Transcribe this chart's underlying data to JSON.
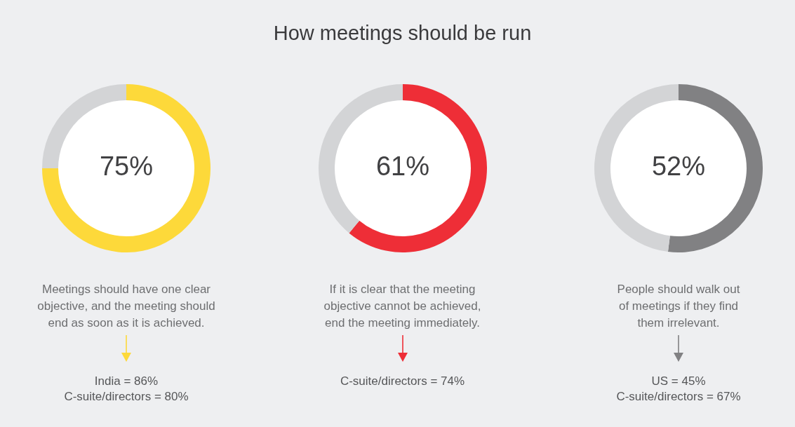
{
  "chart_data": [
    {
      "type": "donut",
      "categories": [
        null,
        null
      ],
      "values": [
        75,
        25
      ],
      "colors": [
        "#fdd93a",
        "#d3d4d6"
      ],
      "value_labels": [
        "75%",
        null
      ],
      "annotations": [
        "Meetings should have one clear objective, and the meeting should end as soon as it is achieved.",
        "India = 86%",
        "C-suite/directors = 80%"
      ]
    },
    {
      "type": "donut",
      "title": "How meetings should be run",
      "categories": [
        null,
        null
      ],
      "values": [
        61,
        39
      ],
      "colors": [
        "#ee2e37",
        "#d3d4d6"
      ],
      "value_labels": [
        "61%",
        null
      ],
      "annotations": [
        "If it is clear that the meeting objective cannot be achieved, end the meeting immediately.",
        "C-suite/directors = 74%"
      ]
    },
    {
      "type": "donut",
      "categories": [
        null,
        null
      ],
      "values": [
        52,
        48
      ],
      "colors": [
        "#818183",
        "#d3d4d6"
      ],
      "value_labels": [
        "52%",
        null
      ],
      "annotations": [
        "People should walk out of meetings if they find them irrelevant.",
        "US = 45%",
        "C-suite/directors = 67%"
      ]
    }
  ]
}
